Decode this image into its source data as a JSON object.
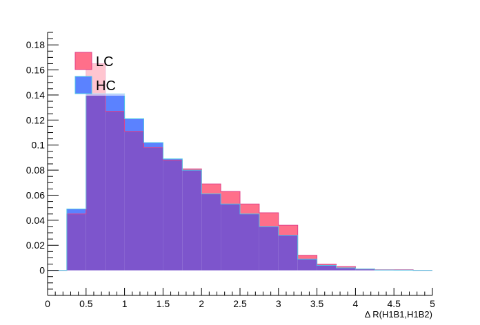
{
  "chart_data": {
    "type": "histogram",
    "title": "",
    "xlabel": "Δ R(H1B1,H1B2)",
    "ylabel": "",
    "xlim": [
      0,
      5
    ],
    "ylim": [
      -0.02,
      0.19
    ],
    "x_ticks": [
      "0",
      "0.5",
      "1",
      "1.5",
      "2",
      "2.5",
      "3",
      "3.5",
      "4",
      "4.5",
      "5"
    ],
    "y_ticks": [
      "0",
      "0.02",
      "0.04",
      "0.06",
      "0.08",
      "0.1",
      "0.12",
      "0.14",
      "0.16",
      "0.18"
    ],
    "bin_edges": [
      0,
      0.25,
      0.5,
      0.75,
      1.0,
      1.25,
      1.5,
      1.75,
      2.0,
      2.25,
      2.5,
      2.75,
      3.0,
      3.25,
      3.5,
      3.75,
      4.0,
      4.25,
      4.5,
      4.75,
      5.0
    ],
    "grid": false,
    "legend_position": "top-left",
    "series": [
      {
        "name": "LC",
        "color": "#ff6f8a",
        "line_color": "#e0428a",
        "values": [
          0,
          0.045,
          0.165,
          0.127,
          0.111,
          0.098,
          0.088,
          0.081,
          0.069,
          0.063,
          0.053,
          0.046,
          0.036,
          0.012,
          0.005,
          0.003,
          0.001,
          0.0005,
          0.0005,
          0
        ]
      },
      {
        "name": "HC",
        "color": "#5b82ff",
        "line_color": "#4fc8e6",
        "values": [
          0,
          0.049,
          0.141,
          0.141,
          0.121,
          0.102,
          0.089,
          0.08,
          0.061,
          0.053,
          0.045,
          0.035,
          0.028,
          0.009,
          0.004,
          0.002,
          0.001,
          0.0003,
          0.0002,
          0
        ]
      }
    ],
    "overlap_color": "#7d55cc"
  }
}
